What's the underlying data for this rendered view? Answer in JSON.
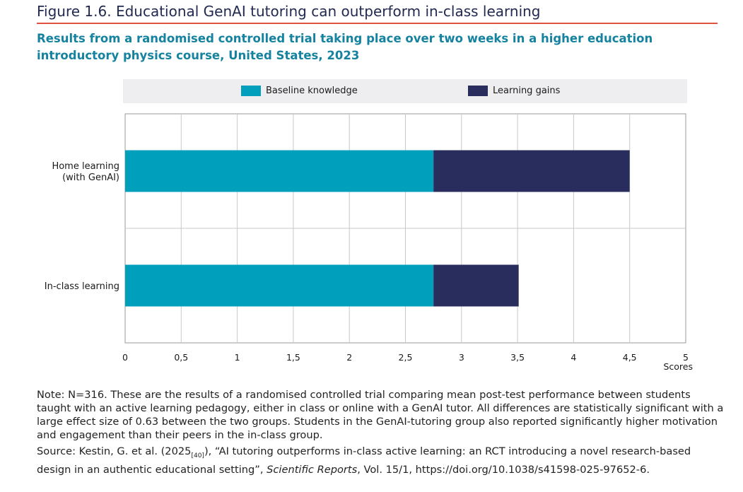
{
  "figure": {
    "title": "Figure 1.6. Educational GenAI tutoring can outperform in-class learning",
    "subtitle": "Results from a randomised controlled trial taking place over two weeks in a higher education introductory physics course, United States, 2023"
  },
  "colors": {
    "title": "#222a52",
    "rule": "#e0523e",
    "subtitle": "#1583a0",
    "baseline": "#009fbc",
    "gains": "#292d5e",
    "legend_bg": "#eeeef0",
    "grid": "#c8c8c8"
  },
  "chart_data": {
    "type": "bar",
    "orientation": "horizontal",
    "stacked": true,
    "categories": [
      "Home learning\n(with GenAI)",
      "In-class learning"
    ],
    "series": [
      {
        "name": "Baseline knowledge",
        "values": [
          2.75,
          2.75
        ]
      },
      {
        "name": "Learning gains",
        "values": [
          1.75,
          0.76
        ]
      }
    ],
    "xlabel": "Scores",
    "xlim": [
      0,
      5
    ],
    "xticks": [
      0,
      0.5,
      1,
      1.5,
      2,
      2.5,
      3,
      3.5,
      4,
      4.5,
      5
    ],
    "xtick_labels": [
      "0",
      "0,5",
      "1",
      "1,5",
      "2",
      "2,5",
      "3",
      "3,5",
      "4",
      "4,5",
      "5"
    ],
    "grid": true,
    "legend_position": "top"
  },
  "notes": {
    "note": "Note: N=316. These are the results of a randomised controlled trial comparing mean post-test performance between students taught with an active learning pedagogy, either in class or online with a GenAI tutor. All differences are statistically significant with a large effect size of 0.63 between the two groups. Students in the GenAI-tutoring group also reported significantly higher motivation and engagement than their peers in the in-class group.",
    "source_prefix": "Source: Kestin, G. et al. (2025",
    "source_ref": "[40]",
    "source_mid": "), “AI tutoring outperforms in-class active learning: an RCT introducing a novel research-based design in an authentic educational setting”, ",
    "source_journal": "Scientific Reports",
    "source_suffix": ", Vol. 15/1, https://doi.org/10.1038/s41598-025-97652-6."
  }
}
